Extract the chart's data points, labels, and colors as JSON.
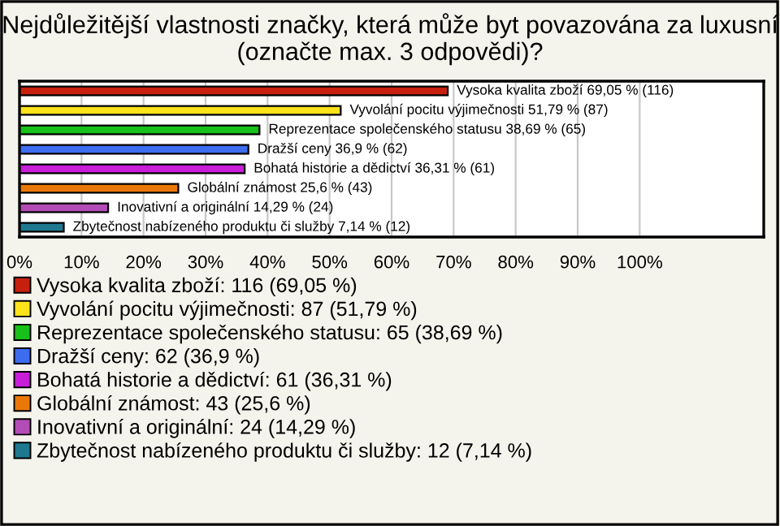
{
  "chart_data": {
    "type": "bar",
    "orientation": "horizontal",
    "title": "Nejdůležitější vlastnosti značky, která může byt povazována za luxusní (označte max. 3 odpovědi)?",
    "categories": [
      null,
      null,
      null,
      null,
      null,
      null,
      null,
      null
    ],
    "series": [
      {
        "name": "Vysoka kvalita zboží: 116 (69,05 %)",
        "color": "#c8200e",
        "values": [
          69.05,
          null,
          null,
          null,
          null,
          null,
          null,
          null
        ],
        "value_labels": [
          "Vysoka kvalita zboží 69,05 % (116)",
          null,
          null,
          null,
          null,
          null,
          null,
          null
        ]
      },
      {
        "name": "Vyvolání pocitu výjimečnosti: 87 (51,79 %)",
        "color": "#ffe31a",
        "values": [
          null,
          51.79,
          null,
          null,
          null,
          null,
          null,
          null
        ],
        "value_labels": [
          null,
          "Vyvolání pocitu výjimečnosti 51,79 % (87)",
          null,
          null,
          null,
          null,
          null,
          null
        ]
      },
      {
        "name": "Reprezentace společenského statusu: 65 (38,69 %)",
        "color": "#18c01a",
        "values": [
          null,
          null,
          38.69,
          null,
          null,
          null,
          null,
          null
        ],
        "value_labels": [
          null,
          null,
          "Reprezentace společenského statusu 38,69 % (65)",
          null,
          null,
          null,
          null,
          null
        ]
      },
      {
        "name": "Dražší ceny: 62 (36,9 %)",
        "color": "#3c6cf0",
        "values": [
          null,
          null,
          null,
          36.9,
          null,
          null,
          null,
          null
        ],
        "value_labels": [
          null,
          null,
          null,
          "Dražší ceny 36,9 % (62)",
          null,
          null,
          null,
          null
        ]
      },
      {
        "name": "Bohatá historie a dědictví: 61 (36,31 %)",
        "color": "#c81ed8",
        "values": [
          null,
          null,
          null,
          null,
          36.31,
          null,
          null,
          null
        ],
        "value_labels": [
          null,
          null,
          null,
          null,
          "Bohatá historie a dědictví 36,31 % (61)",
          null,
          null,
          null
        ]
      },
      {
        "name": "Globální známost: 43 (25,6 %)",
        "color": "#ea7808",
        "values": [
          null,
          null,
          null,
          null,
          null,
          25.6,
          null,
          null
        ],
        "value_labels": [
          null,
          null,
          null,
          null,
          null,
          "Globální známost 25,6 % (43)",
          null,
          null
        ]
      },
      {
        "name": "Inovativní a originální: 24 (14,29 %)",
        "color": "#b44cb8",
        "values": [
          null,
          null,
          null,
          null,
          null,
          null,
          14.29,
          null
        ],
        "value_labels": [
          null,
          null,
          null,
          null,
          null,
          null,
          "Inovativní a originální 14,29 % (24)",
          null
        ]
      },
      {
        "name": "Zbytečnost nabízeného produktu či služby: 12 (7,14 %)",
        "color": "#1e7890",
        "values": [
          null,
          null,
          null,
          null,
          null,
          null,
          null,
          7.14
        ],
        "value_labels": [
          null,
          null,
          null,
          null,
          null,
          null,
          null,
          "Zbytečnost nabízeného produktu či služby 7,14 % (12)"
        ]
      }
    ],
    "xlim": [
      0,
      120
    ],
    "xticks": [
      {
        "value": 0,
        "label": "0%"
      },
      {
        "value": 10,
        "label": "10%"
      },
      {
        "value": 20,
        "label": "20%"
      },
      {
        "value": 30,
        "label": "30%"
      },
      {
        "value": 40,
        "label": "40%"
      },
      {
        "value": 50,
        "label": "50%"
      },
      {
        "value": 60,
        "label": "60%"
      },
      {
        "value": 70,
        "label": "70%"
      },
      {
        "value": 80,
        "label": "80%"
      },
      {
        "value": 90,
        "label": "90%"
      },
      {
        "value": 100,
        "label": "100%"
      }
    ],
    "grid": "x",
    "legend": "bottom",
    "tick_labels": "x"
  }
}
